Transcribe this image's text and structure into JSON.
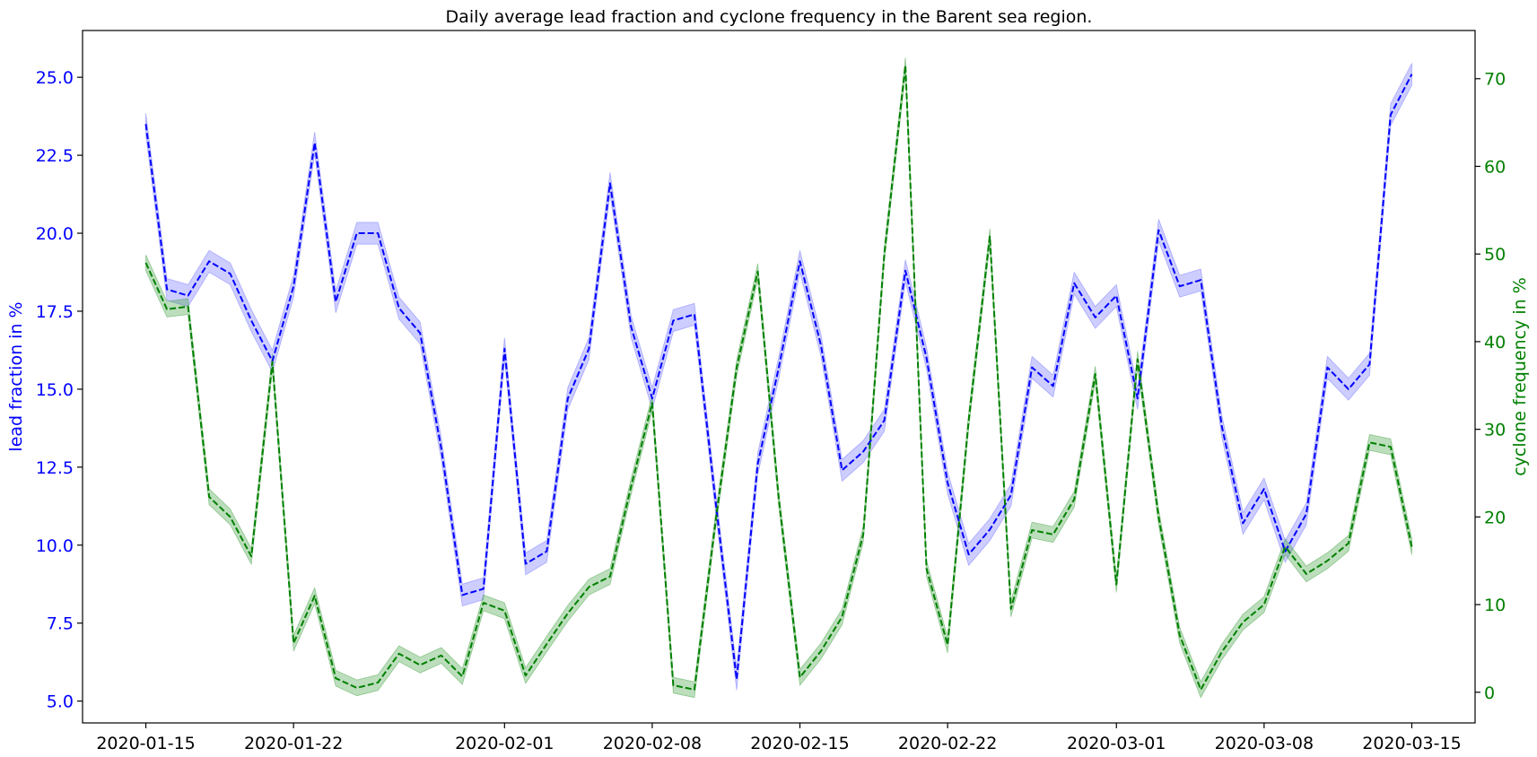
{
  "chart_data": {
    "type": "line",
    "title": "Daily average lead fraction and cyclone frequency in the Barent sea region.",
    "xlabel": "",
    "x_ticks": [
      "2020-01-15",
      "2020-01-22",
      "2020-02-01",
      "2020-02-08",
      "2020-02-15",
      "2020-02-22",
      "2020-03-01",
      "2020-03-08",
      "2020-03-15"
    ],
    "x_range": [
      "2020-01-12",
      "2020-03-18"
    ],
    "dates": [
      "2020-01-15",
      "2020-01-16",
      "2020-01-17",
      "2020-01-18",
      "2020-01-19",
      "2020-01-20",
      "2020-01-21",
      "2020-01-22",
      "2020-01-23",
      "2020-01-24",
      "2020-01-25",
      "2020-01-26",
      "2020-01-27",
      "2020-01-28",
      "2020-01-29",
      "2020-01-30",
      "2020-01-31",
      "2020-02-01",
      "2020-02-02",
      "2020-02-03",
      "2020-02-04",
      "2020-02-05",
      "2020-02-06",
      "2020-02-07",
      "2020-02-08",
      "2020-02-09",
      "2020-02-10",
      "2020-02-11",
      "2020-02-12",
      "2020-02-13",
      "2020-02-14",
      "2020-02-15",
      "2020-02-16",
      "2020-02-17",
      "2020-02-18",
      "2020-02-19",
      "2020-02-20",
      "2020-02-21",
      "2020-02-22",
      "2020-02-23",
      "2020-02-24",
      "2020-02-25",
      "2020-02-26",
      "2020-02-27",
      "2020-02-28",
      "2020-02-29",
      "2020-03-01",
      "2020-03-02",
      "2020-03-03",
      "2020-03-04",
      "2020-03-05",
      "2020-03-06",
      "2020-03-07",
      "2020-03-08",
      "2020-03-09",
      "2020-03-10",
      "2020-03-11",
      "2020-03-12",
      "2020-03-13",
      "2020-03-14",
      "2020-03-15"
    ],
    "left_axis": {
      "label": "lead fraction in %",
      "color": "#0000ff",
      "ylim": [
        4.3,
        26.5
      ],
      "ticks": [
        "5.0",
        "7.5",
        "10.0",
        "12.5",
        "15.0",
        "17.5",
        "20.0",
        "22.5",
        "25.0"
      ]
    },
    "right_axis": {
      "label": "cyclone frequency in %",
      "color": "#008000",
      "ylim": [
        -3.5,
        75.5
      ],
      "ticks": [
        "0",
        "10",
        "20",
        "30",
        "40",
        "50",
        "60",
        "70"
      ]
    },
    "series": [
      {
        "axis": "left",
        "color": "#0000ff",
        "band_color": "#7070ff",
        "band_halfwidth": 0.35,
        "style": "dashed",
        "values": [
          23.5,
          18.2,
          18.0,
          19.1,
          18.7,
          17.2,
          15.9,
          18.3,
          22.9,
          17.8,
          20.0,
          20.0,
          17.6,
          16.8,
          13.1,
          8.4,
          8.6,
          16.3,
          9.4,
          9.8,
          14.7,
          16.3,
          21.6,
          17.0,
          14.7,
          17.2,
          17.4,
          11.4,
          5.7,
          12.6,
          15.7,
          19.1,
          16.4,
          12.4,
          13.0,
          14.0,
          18.8,
          16.0,
          12.0,
          9.7,
          10.5,
          11.6,
          15.7,
          15.1,
          18.4,
          17.3,
          18.0,
          14.7,
          20.1,
          18.3,
          18.5,
          13.8,
          10.7,
          11.8,
          9.8,
          11.0,
          15.7,
          15.0,
          15.8,
          23.8,
          25.1
        ]
      },
      {
        "axis": "right",
        "color": "#008000",
        "band_color": "#40a040",
        "band_halfwidth": 0.9,
        "style": "dashed",
        "values": [
          49.0,
          43.7,
          44.0,
          22.3,
          20.0,
          15.5,
          37.7,
          5.6,
          11.0,
          1.6,
          0.5,
          1.1,
          4.4,
          3.1,
          4.2,
          1.8,
          10.2,
          9.3,
          1.9,
          5.5,
          9.0,
          12.0,
          13.2,
          23.5,
          33.0,
          0.8,
          0.3,
          19.5,
          37.0,
          48.0,
          22.0,
          1.7,
          4.7,
          8.6,
          18.0,
          50.0,
          71.5,
          14.1,
          5.4,
          31.0,
          52.0,
          9.5,
          18.5,
          18.0,
          22.0,
          36.3,
          12.3,
          38.0,
          20.0,
          6.5,
          0.3,
          4.6,
          8.0,
          10.0,
          16.6,
          13.5,
          15.0,
          17.0,
          28.5,
          28.0,
          16.6
        ]
      }
    ]
  }
}
